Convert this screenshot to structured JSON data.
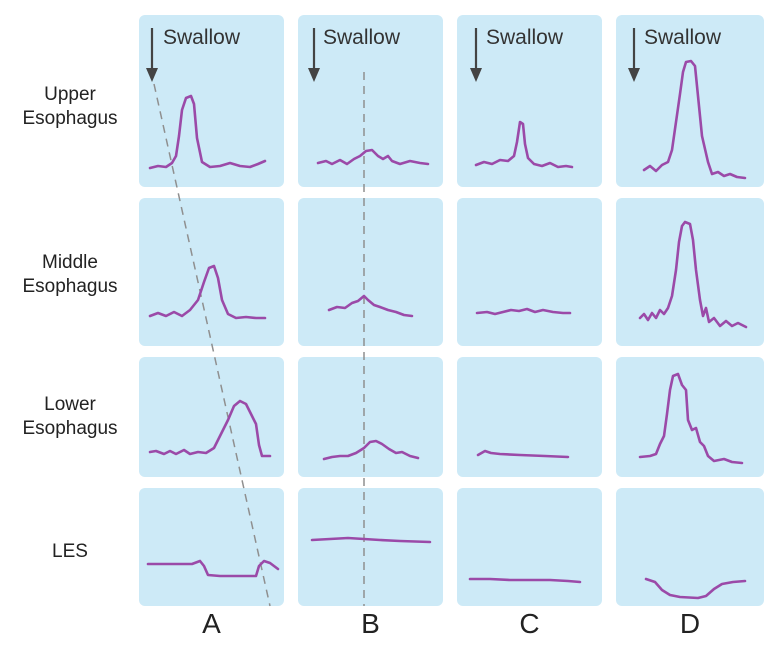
{
  "row_labels": [
    {
      "line1": "Upper",
      "line2": "Esophagus"
    },
    {
      "line1": "Middle",
      "line2": "Esophagus"
    },
    {
      "line1": "Lower",
      "line2": "Esophagus"
    },
    {
      "line1": "LES",
      "line2": ""
    }
  ],
  "column_labels": [
    "A",
    "B",
    "C",
    "D"
  ],
  "swallow_label": "Swallow",
  "colors": {
    "panel_background": "#cdeaf7",
    "pressure_trace": "#9b4aa8",
    "swallow_arrow": "#444444",
    "timing_line": "#8f8f8f"
  },
  "icons": [
    "down-arrow-icon"
  ]
}
